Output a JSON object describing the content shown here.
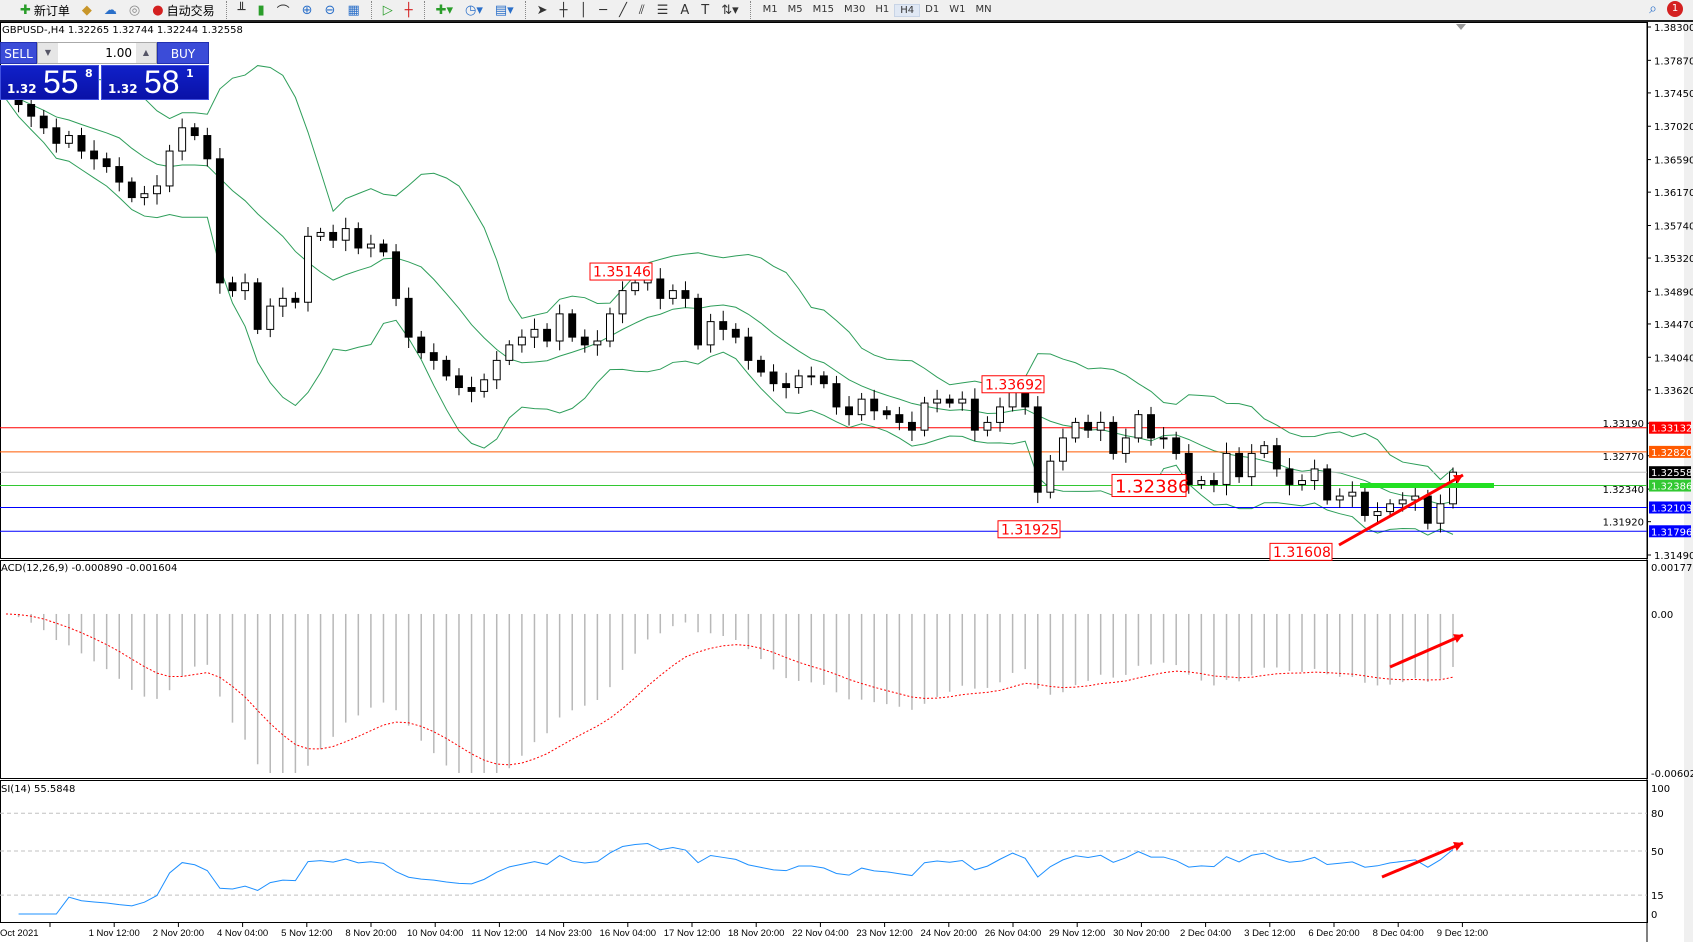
{
  "toolbar": {
    "new_order": "新订单",
    "auto_trading": "自动交易",
    "timeframes": [
      "M1",
      "M5",
      "M15",
      "M30",
      "H1",
      "H4",
      "D1",
      "W1",
      "MN"
    ],
    "active_timeframe": "H4",
    "notification_count": "1"
  },
  "chart": {
    "title": "GBPUSD-,H4  1.32265 1.32744 1.32244 1.32558",
    "symbol": "GBPUSD-",
    "timeframe": "H4"
  },
  "one_click": {
    "sell_label": "SELL",
    "buy_label": "BUY",
    "lot": "1.00",
    "sell_big": "1.32",
    "sell_pips": "55",
    "sell_frac": "8",
    "buy_big": "1.32",
    "buy_pips": "58",
    "buy_frac": "1"
  },
  "colors": {
    "up": "#ffffff",
    "down": "#000000",
    "bands": "#2e9e5a",
    "macd_hist": "#b8b8b8",
    "macd_signal": "#ff0000",
    "rsi": "#1e90ff",
    "arrow": "#ff0000"
  },
  "chart_data": {
    "type": "candlestick",
    "price_ticks": [
      "1.38300",
      "1.37870",
      "1.37450",
      "1.37020",
      "1.36590",
      "1.36170",
      "1.35740",
      "1.35320",
      "1.34890",
      "1.34470",
      "1.34040",
      "1.33620",
      "1.33190",
      "1.32770",
      "1.32340",
      "1.31920",
      "1.31490"
    ],
    "ylim": [
      1.3149,
      1.383
    ],
    "time_labels": [
      "Oct 2021",
      "1 Nov 12:00",
      "2 Nov 20:00",
      "4 Nov 04:00",
      "5 Nov 12:00",
      "8 Nov 20:00",
      "10 Nov 04:00",
      "11 Nov 12:00",
      "14 Nov 23:00",
      "16 Nov 04:00",
      "17 Nov 12:00",
      "18 Nov 20:00",
      "22 Nov 04:00",
      "23 Nov 12:00",
      "24 Nov 20:00",
      "26 Nov 04:00",
      "29 Nov 12:00",
      "30 Nov 20:00",
      "2 Dec 04:00",
      "3 Dec 12:00",
      "6 Dec 20:00",
      "8 Dec 04:00",
      "9 Dec 12:00"
    ],
    "closes": [
      1.3745,
      1.373,
      1.3715,
      1.37,
      1.368,
      1.369,
      1.367,
      1.366,
      1.365,
      1.363,
      1.361,
      1.3615,
      1.3625,
      1.367,
      1.37,
      1.369,
      1.366,
      1.35,
      1.349,
      1.35,
      1.344,
      1.347,
      1.348,
      1.3475,
      1.356,
      1.3565,
      1.3555,
      1.357,
      1.3545,
      1.355,
      1.354,
      1.348,
      1.343,
      1.341,
      1.34,
      1.338,
      1.3365,
      1.336,
      1.3375,
      1.34,
      1.342,
      1.343,
      1.344,
      1.3425,
      1.346,
      1.343,
      1.342,
      1.3425,
      1.346,
      1.349,
      1.35,
      1.3505,
      1.348,
      1.349,
      1.348,
      1.342,
      1.345,
      1.344,
      1.343,
      1.34,
      1.3385,
      1.337,
      1.3365,
      1.338,
      1.338,
      1.337,
      1.334,
      1.333,
      1.335,
      1.3335,
      1.333,
      1.332,
      1.331,
      1.3345,
      1.335,
      1.3345,
      1.335,
      1.331,
      1.332,
      1.334,
      1.336,
      1.334,
      1.323,
      1.327,
      1.33,
      1.332,
      1.331,
      1.332,
      1.328,
      1.33,
      1.333,
      1.33,
      1.33,
      1.328,
      1.324,
      1.3245,
      1.324,
      1.328,
      1.325,
      1.328,
      1.329,
      1.326,
      1.324,
      1.3245,
      1.326,
      1.322,
      1.3225,
      1.323,
      1.32,
      1.3205,
      1.3215,
      1.322,
      1.3225,
      1.319,
      1.3215,
      1.32558
    ],
    "hlines": [
      {
        "price": 1.33132,
        "label": "1.33132",
        "color": "#ff0000"
      },
      {
        "price": 1.3282,
        "label": "1.32820",
        "color": "#ff5a00"
      },
      {
        "price": 1.32558,
        "label": "1.32558",
        "color": "#000000",
        "line": "#c0c0c0"
      },
      {
        "price": 1.32386,
        "label": "1.32386",
        "color": "#32c832"
      },
      {
        "price": 1.32103,
        "label": "1.32103",
        "color": "#0000ff"
      },
      {
        "price": 1.31796,
        "label": "1.31796",
        "color": "#0000ff"
      }
    ],
    "annotations": [
      "1.35146",
      "1.33692",
      "1.32386",
      "1.31925",
      "1.31608"
    ],
    "macd": {
      "label": "ACD(12,26,9) -0.000890 -0.001604",
      "params": [
        12,
        26,
        9
      ],
      "ylim": [
        -0.00602,
        0.001777
      ],
      "ticks": [
        "0.001777",
        "0.00",
        "-0.00602"
      ]
    },
    "rsi": {
      "label": "SI(14) 55.5848",
      "period": 14,
      "levels": [
        80,
        50,
        15
      ],
      "ticks": [
        "100",
        "80",
        "50",
        "15",
        "0"
      ]
    }
  }
}
